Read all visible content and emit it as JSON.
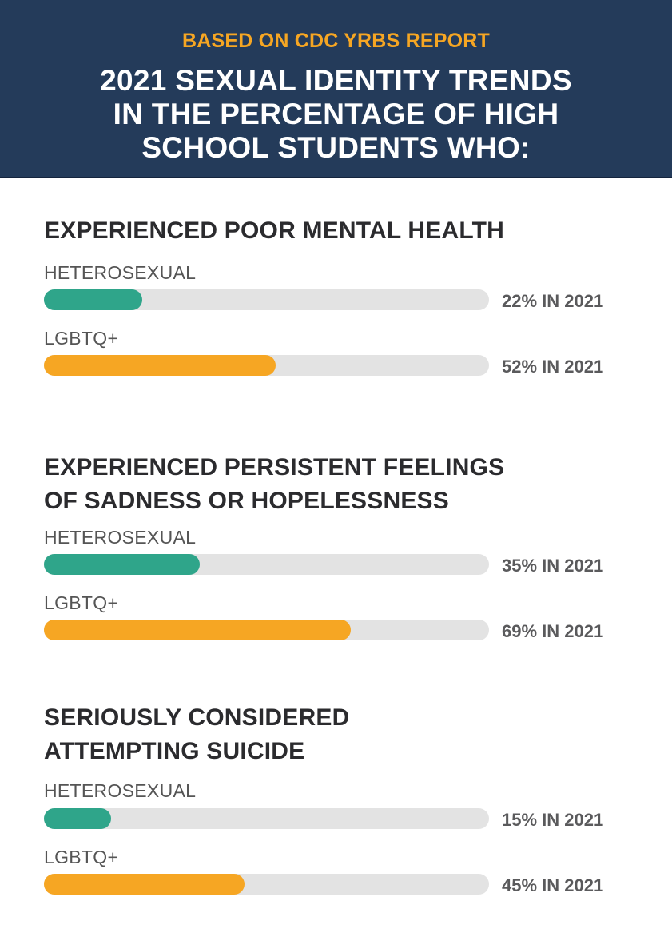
{
  "header": {
    "subtitle": "BASED ON CDC YRBS REPORT",
    "title_lines": [
      "2021 SEXUAL IDENTITY TRENDS",
      "IN THE PERCENTAGE OF HIGH",
      "SCHOOL STUDENTS WHO:"
    ]
  },
  "colors": {
    "header_bg": "#243b5a",
    "accent_orange": "#f6a623",
    "heterosexual": "#2fa58a",
    "lgbtq": "#f6a623",
    "track": "#e3e3e3"
  },
  "sections": [
    {
      "title_lines": [
        "EXPERIENCED POOR MENTAL HEALTH"
      ],
      "rows": [
        {
          "label": "HETEROSEXUAL",
          "value": 22,
          "value_text": "22% IN 2021"
        },
        {
          "label": "LGBTQ+",
          "value": 52,
          "value_text": "52% IN 2021"
        }
      ]
    },
    {
      "title_lines": [
        "EXPERIENCED PERSISTENT FEELINGS",
        "OF SADNESS OR HOPELESSNESS"
      ],
      "rows": [
        {
          "label": "HETEROSEXUAL",
          "value": 35,
          "value_text": "35% IN 2021"
        },
        {
          "label": "LGBTQ+",
          "value": 69,
          "value_text": "69% IN 2021"
        }
      ]
    },
    {
      "title_lines": [
        "SERIOUSLY CONSIDERED",
        "ATTEMPTING SUICIDE"
      ],
      "rows": [
        {
          "label": "HETEROSEXUAL",
          "value": 15,
          "value_text": "15% IN 2021"
        },
        {
          "label": "LGBTQ+",
          "value": 45,
          "value_text": "45% IN 2021"
        }
      ]
    }
  ],
  "chart_data": {
    "type": "bar",
    "orientation": "horizontal",
    "title": "2021 Sexual Identity Trends in the Percentage of High School Students Who:",
    "subtitle": "Based on CDC YRBS Report",
    "categories": [
      "Experienced poor mental health",
      "Experienced persistent feelings of sadness or hopelessness",
      "Seriously considered attempting suicide"
    ],
    "series": [
      {
        "name": "Heterosexual",
        "color": "#2fa58a",
        "values": [
          22,
          35,
          15
        ]
      },
      {
        "name": "LGBTQ+",
        "color": "#f6a623",
        "values": [
          52,
          69,
          45
        ]
      }
    ],
    "xlim": [
      0,
      100
    ],
    "unit": "%",
    "year": 2021,
    "grid": false,
    "legend": "inline labels"
  }
}
